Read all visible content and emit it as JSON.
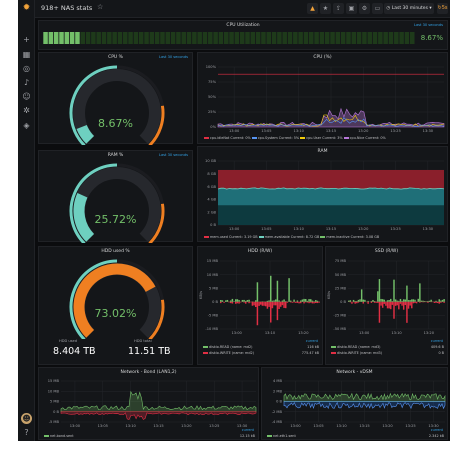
{
  "app": {
    "title": "918+ NAS stats"
  },
  "toolbar": {
    "time_range": "Last 30 minutes",
    "refresh": "5s"
  },
  "sidebar": {
    "icons": [
      "grafana-logo-icon",
      "plus-icon",
      "grid-icon",
      "compass-icon",
      "bell-icon",
      "user-icon",
      "gear-icon",
      "shield-icon"
    ]
  },
  "cpu_util": {
    "title": "CPU Utilization",
    "sub": "Last 30 seconds",
    "value": "8.67%",
    "level": 0.0867
  },
  "cpu_gauge": {
    "title": "CPU %",
    "sub": "Last 30 seconds",
    "value": "8.67%",
    "level": 0.0867
  },
  "ram_gauge": {
    "title": "RAM %",
    "sub": "Last 30 seconds",
    "value": "25.72%",
    "level": 0.2572
  },
  "hdd_gauge": {
    "title": "HDD used %",
    "sub": "",
    "value": "73.02%",
    "level": 0.7302
  },
  "hdd_stats": {
    "used_label": "HDD used",
    "used_value": "8.404 TB",
    "total_label": "HDD total",
    "total_value": "11.51 TB"
  },
  "cpu_chart": {
    "title": "CPU (%)",
    "yticks": [
      "100%",
      "75%",
      "50%",
      "25%",
      "0%"
    ],
    "xticks": [
      "13:00",
      "13:05",
      "13:10",
      "13:15",
      "13:20",
      "13:25",
      "13:30"
    ],
    "legend": [
      "cpu.idleNat Current: 0%",
      "cpu.System Current: 5%",
      "cpu.User Current: 3%",
      "cpu.Nice Current: 0%"
    ]
  },
  "ram_chart": {
    "title": "RAM",
    "yticks": [
      "10 GB",
      "8 GB",
      "6 GB",
      "4 GB",
      "2 GB",
      "0 B"
    ],
    "xticks": [
      "13:00",
      "13:05",
      "13:10",
      "13:15",
      "13:20",
      "13:25",
      "13:30"
    ],
    "legend": [
      "mem.used Current: 3.19 GB",
      "mem.available Current: 8.72 GB",
      "mem.inactive Current: 3.08 GB"
    ]
  },
  "hdd_chart": {
    "title": "HDD (R/W)",
    "yticks": [
      "15 MB",
      "10 MB",
      "5 MB",
      "0 B",
      "-5 MB",
      "-10 MB"
    ],
    "xticks": [
      "13:00",
      "13:10",
      "13:20"
    ],
    "ylabel": "KB/s",
    "legend_header": "current",
    "legend": [
      {
        "name": "diskio.READ (name: md2)",
        "value": "116 kB"
      },
      {
        "name": "diskio.WRITE (name: md2)",
        "value": "775.47 kB"
      }
    ]
  },
  "ssd_chart": {
    "title": "SSD (R/W)",
    "yticks": [
      "75 MB",
      "50 MB",
      "25 MB",
      "0 B",
      "-25 MB",
      "-50 MB"
    ],
    "xticks": [
      "13:00",
      "13:10",
      "13:20"
    ],
    "ylabel": "KB/s",
    "legend_header": "current",
    "legend": [
      {
        "name": "diskio.READ (name: md3)",
        "value": "409.6 B"
      },
      {
        "name": "diskio.WRITE (name: md3)",
        "value": "0 B"
      }
    ]
  },
  "net_bond": {
    "title": "Network - Bond (LAN1,2)",
    "yticks": [
      "15 MB",
      "10 MB",
      "5 MB",
      "0 B",
      "-5 MB"
    ],
    "xticks": [
      "13:00",
      "13:05",
      "13:10",
      "13:15",
      "13:20",
      "13:25",
      "13:30"
    ],
    "legend_header": "current",
    "legend": [
      {
        "name": "net.bond.sent",
        "value": "12.15 kB"
      }
    ]
  },
  "net_vdsm": {
    "title": "Network - vDSM",
    "yticks": [
      "4 MB",
      "2 MB",
      "0 B",
      "-2 MB",
      "-4 MB"
    ],
    "xticks": [
      "13:00",
      "13:05",
      "13:10",
      "13:15",
      "13:20",
      "13:25",
      "13:30"
    ],
    "legend_header": "current",
    "legend": [
      {
        "name": "net.eth1.sent",
        "value": "2.342 kB"
      }
    ]
  },
  "colors": {
    "accent": "#f2a33a",
    "green": "#73bf69",
    "teal": "#6ed0c0",
    "orange": "#ef7f21",
    "red": "#e02f44",
    "blue": "#1f60c4"
  }
}
